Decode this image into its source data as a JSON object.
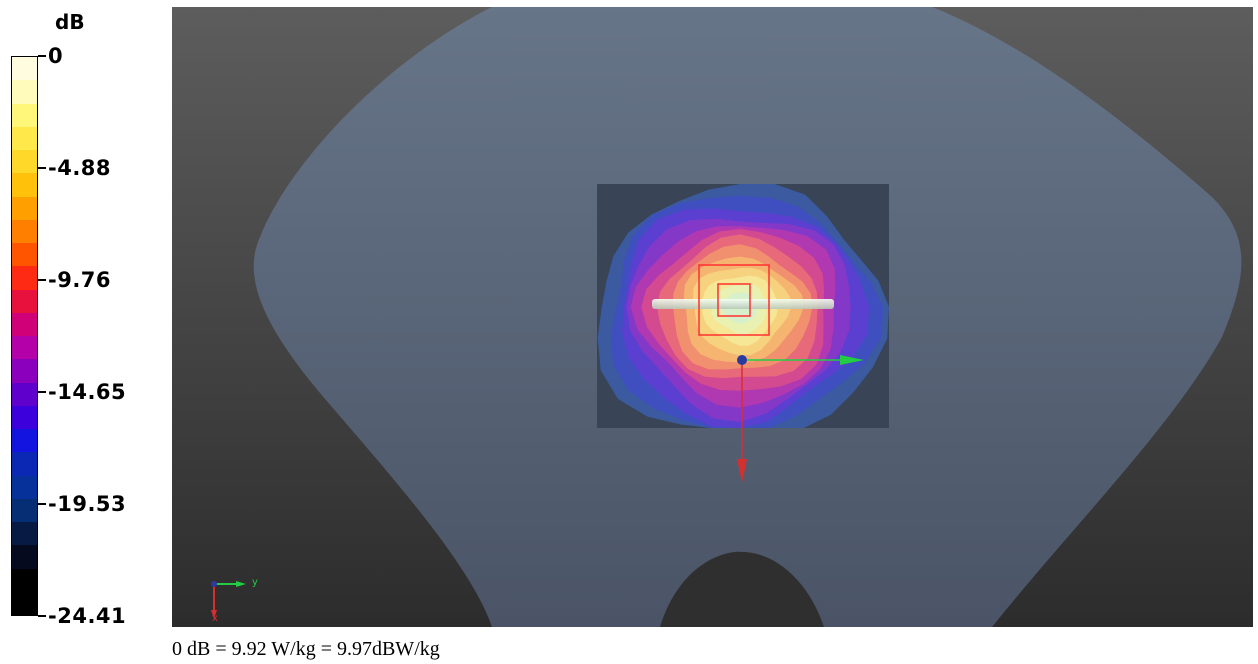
{
  "legend": {
    "unit": "dB",
    "labels": [
      "0",
      "-4.88",
      "-9.76",
      "-14.65",
      "-19.53",
      "-24.41"
    ],
    "swatch_colors": [
      "#fffce0",
      "#fffbbb",
      "#fff77a",
      "#ffe94a",
      "#ffd82a",
      "#ffc10a",
      "#ff9f00",
      "#ff7f00",
      "#ff5400",
      "#ff2a14",
      "#e8103c",
      "#d00078",
      "#b400a8",
      "#8a00bc",
      "#6000cc",
      "#3c00dc",
      "#1414e0",
      "#0a28b4",
      "#06309a",
      "#062e74",
      "#061a44",
      "#050a1e",
      "#000000",
      "#000000"
    ]
  },
  "scene": {
    "phantom_color": "#677589",
    "phantom_bottom_color": "#4a5466",
    "scan_area_color": "#394556",
    "hotspot_colors": [
      "#3b5aa0",
      "#3f4fc0",
      "#5a3fd0",
      "#8438c8",
      "#b038b0",
      "#d44a90",
      "#e86a7a",
      "#f0906e",
      "#f5b470",
      "#f7d27e",
      "#f5e796",
      "#e8f0b2",
      "#d6f0cc"
    ],
    "cube_color": "#ff3030",
    "axis_x_color": "#d43030",
    "axis_y_color": "#22cc44",
    "origin_color": "#2a3aa0",
    "triad_x_label": "x",
    "triad_y_label": "y"
  },
  "caption": "0 dB = 9.92 W/kg = 9.97dBW/kg"
}
